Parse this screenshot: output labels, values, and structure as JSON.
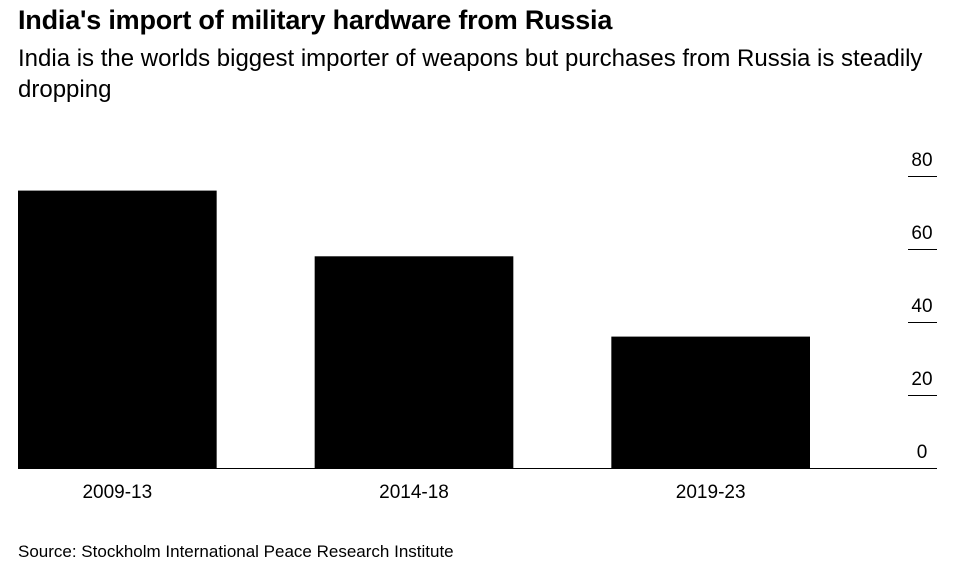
{
  "chart_data": {
    "type": "bar",
    "title": "India's import of military hardware from Russia",
    "subtitle": "India is the worlds biggest importer of weapons but purchases from Russia is steadily dropping",
    "categories": [
      "2009-13",
      "2014-18",
      "2019-23"
    ],
    "values": [
      76,
      58,
      36
    ],
    "ylim": [
      0,
      80
    ],
    "yticks": [
      "0",
      "20",
      "40",
      "60",
      "80"
    ],
    "xlabel": "",
    "ylabel": "",
    "y_axis_side": "right",
    "grid": false,
    "bar_color": "#000000"
  },
  "source": "Source: Stockholm International Peace Research Institute"
}
